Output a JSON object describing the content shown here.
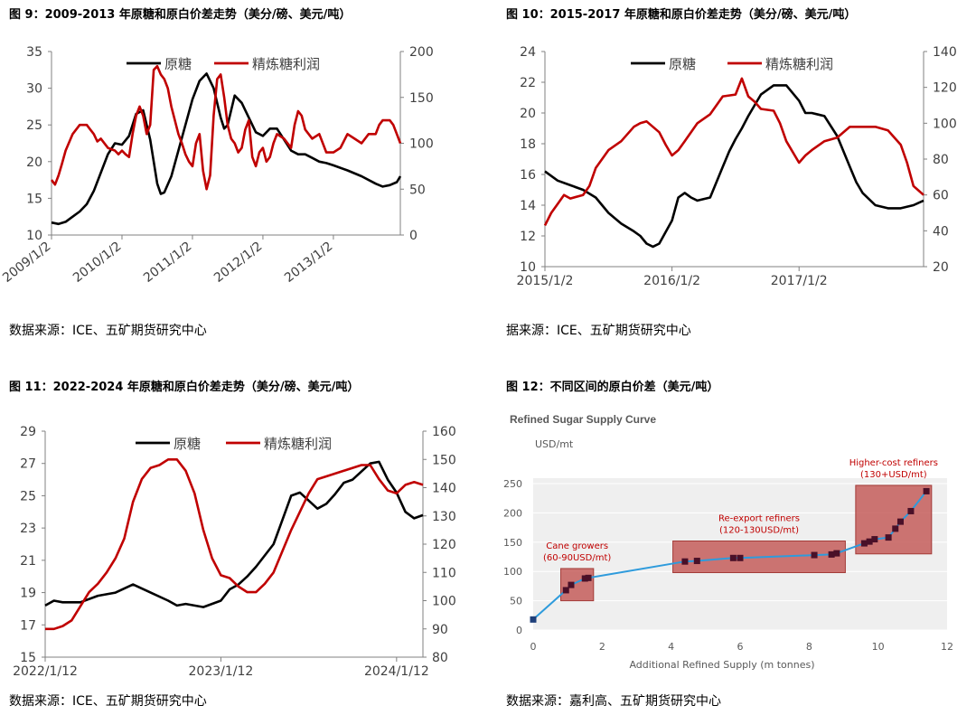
{
  "colors": {
    "raw": "#000000",
    "profit": "#c00000",
    "blue": "#2e9bdc",
    "box": "#c0504d"
  },
  "chart_data": [
    {
      "type": "line",
      "title": "图 9：2009-2013 年原糖和原白价差走势（美分/磅、美元/吨）",
      "source": "数据来源：ICE、五矿期货研究中心",
      "x_ticks": [
        "2009/1/2",
        "2010/1/2",
        "2011/1/2",
        "2012/1/2",
        "2013/1/2"
      ],
      "x_range": [
        2009.0,
        2013.95
      ],
      "y_left": {
        "range": [
          10,
          35
        ],
        "ticks": [
          "10",
          "15",
          "20",
          "25",
          "30",
          "35"
        ]
      },
      "y_right": {
        "range": [
          0,
          200
        ],
        "ticks": [
          "0",
          "50",
          "100",
          "150",
          "200"
        ]
      },
      "legend": [
        "原糖",
        "精炼糖利润"
      ],
      "series": [
        {
          "name": "原糖",
          "axis": "left",
          "x": [
            2009.0,
            2009.1,
            2009.2,
            2009.3,
            2009.4,
            2009.5,
            2009.6,
            2009.7,
            2009.8,
            2009.9,
            2010.0,
            2010.1,
            2010.2,
            2010.3,
            2010.4,
            2010.45,
            2010.5,
            2010.55,
            2010.6,
            2010.7,
            2010.8,
            2010.9,
            2011.0,
            2011.1,
            2011.2,
            2011.3,
            2011.4,
            2011.45,
            2011.5,
            2011.55,
            2011.6,
            2011.7,
            2011.8,
            2011.9,
            2012.0,
            2012.1,
            2012.2,
            2012.3,
            2012.4,
            2012.5,
            2012.6,
            2012.7,
            2012.8,
            2012.9,
            2013.0,
            2013.2,
            2013.4,
            2013.6,
            2013.7,
            2013.8,
            2013.9,
            2013.95
          ],
          "y": [
            11.7,
            11.5,
            11.8,
            12.5,
            13.2,
            14.2,
            16.0,
            18.5,
            21.0,
            22.5,
            22.3,
            23.5,
            26.5,
            27.0,
            23.0,
            20.0,
            17.0,
            15.6,
            15.8,
            18.0,
            21.5,
            25.0,
            28.5,
            31.0,
            32.0,
            30.0,
            26.0,
            24.5,
            25.0,
            27.0,
            29.0,
            28.0,
            26.0,
            24.0,
            23.5,
            24.5,
            24.5,
            23.0,
            21.5,
            21.0,
            21.0,
            20.5,
            20.0,
            19.8,
            19.5,
            18.8,
            18.0,
            17.0,
            16.6,
            16.8,
            17.2,
            18.0
          ]
        },
        {
          "name": "精炼糖利润",
          "axis": "right",
          "x": [
            2009.0,
            2009.05,
            2009.1,
            2009.15,
            2009.2,
            2009.3,
            2009.4,
            2009.5,
            2009.55,
            2009.6,
            2009.65,
            2009.7,
            2009.8,
            2009.9,
            2009.95,
            2010.0,
            2010.05,
            2010.1,
            2010.15,
            2010.2,
            2010.25,
            2010.3,
            2010.35,
            2010.4,
            2010.45,
            2010.5,
            2010.55,
            2010.6,
            2010.65,
            2010.7,
            2010.75,
            2010.8,
            2010.85,
            2010.9,
            2010.95,
            2011.0,
            2011.05,
            2011.1,
            2011.15,
            2011.2,
            2011.25,
            2011.3,
            2011.35,
            2011.4,
            2011.45,
            2011.5,
            2011.55,
            2011.6,
            2011.65,
            2011.7,
            2011.75,
            2011.8,
            2011.85,
            2011.9,
            2011.95,
            2012.0,
            2012.05,
            2012.1,
            2012.15,
            2012.2,
            2012.3,
            2012.4,
            2012.45,
            2012.5,
            2012.55,
            2012.6,
            2012.7,
            2012.8,
            2012.9,
            2013.0,
            2013.1,
            2013.2,
            2013.3,
            2013.4,
            2013.5,
            2013.6,
            2013.65,
            2013.7,
            2013.8,
            2013.85,
            2013.9,
            2013.95
          ],
          "y": [
            60,
            55,
            65,
            78,
            92,
            110,
            120,
            120,
            115,
            110,
            102,
            105,
            95,
            92,
            88,
            92,
            88,
            85,
            110,
            130,
            140,
            130,
            110,
            120,
            180,
            184,
            175,
            170,
            160,
            140,
            125,
            110,
            100,
            88,
            80,
            75,
            100,
            110,
            70,
            50,
            65,
            130,
            170,
            175,
            150,
            120,
            105,
            100,
            90,
            95,
            115,
            125,
            85,
            75,
            90,
            95,
            80,
            85,
            100,
            110,
            105,
            95,
            120,
            135,
            130,
            115,
            105,
            110,
            90,
            90,
            95,
            110,
            105,
            100,
            110,
            110,
            120,
            125,
            125,
            120,
            110,
            100
          ]
        }
      ]
    },
    {
      "type": "line",
      "title": "图 10：2015-2017 年原糖和原白价差走势（美分/磅、美元/吨）",
      "source": "据来源：ICE、五矿期货研究中心",
      "x_ticks": [
        "2015/1/2",
        "2016/1/2",
        "2017/1/2"
      ],
      "x_range": [
        2015.0,
        2017.98
      ],
      "y_left": {
        "range": [
          10,
          24
        ],
        "ticks": [
          "10",
          "12",
          "14",
          "16",
          "18",
          "20",
          "22",
          "24"
        ]
      },
      "y_right": {
        "range": [
          20,
          140
        ],
        "ticks": [
          "20",
          "40",
          "60",
          "80",
          "100",
          "120",
          "140"
        ]
      },
      "legend": [
        "原糖",
        "精炼糖利润"
      ],
      "series": [
        {
          "name": "原糖",
          "axis": "left",
          "x": [
            2015.0,
            2015.1,
            2015.2,
            2015.3,
            2015.4,
            2015.5,
            2015.6,
            2015.7,
            2015.75,
            2015.8,
            2015.85,
            2015.9,
            2016.0,
            2016.05,
            2016.1,
            2016.15,
            2016.2,
            2016.3,
            2016.35,
            2016.4,
            2016.45,
            2016.5,
            2016.55,
            2016.6,
            2016.65,
            2016.7,
            2016.8,
            2016.9,
            2017.0,
            2017.05,
            2017.1,
            2017.15,
            2017.2,
            2017.3,
            2017.35,
            2017.4,
            2017.45,
            2017.5,
            2017.6,
            2017.7,
            2017.8,
            2017.9,
            2017.98
          ],
          "y": [
            16.2,
            15.6,
            15.3,
            15.0,
            14.5,
            13.5,
            12.8,
            12.3,
            12.0,
            11.5,
            11.3,
            11.5,
            13.0,
            14.5,
            14.8,
            14.5,
            14.3,
            14.5,
            15.5,
            16.5,
            17.5,
            18.3,
            19.0,
            19.8,
            20.5,
            21.2,
            21.8,
            21.8,
            20.8,
            20.0,
            20.0,
            19.9,
            19.8,
            18.5,
            17.5,
            16.5,
            15.5,
            14.8,
            14.0,
            13.8,
            13.8,
            14.0,
            14.3
          ]
        },
        {
          "name": "精炼糖利润",
          "axis": "right",
          "x": [
            2015.0,
            2015.05,
            2015.1,
            2015.15,
            2015.2,
            2015.3,
            2015.35,
            2015.4,
            2015.5,
            2015.6,
            2015.7,
            2015.75,
            2015.8,
            2015.9,
            2015.95,
            2016.0,
            2016.05,
            2016.1,
            2016.2,
            2016.3,
            2016.4,
            2016.5,
            2016.55,
            2016.6,
            2016.65,
            2016.7,
            2016.8,
            2016.85,
            2016.9,
            2017.0,
            2017.05,
            2017.1,
            2017.2,
            2017.3,
            2017.4,
            2017.5,
            2017.6,
            2017.7,
            2017.8,
            2017.85,
            2017.9,
            2017.98
          ],
          "y": [
            43,
            50,
            55,
            60,
            58,
            60,
            65,
            75,
            85,
            90,
            98,
            100,
            101,
            95,
            88,
            82,
            85,
            90,
            100,
            105,
            115,
            116,
            125,
            115,
            112,
            108,
            107,
            100,
            90,
            78,
            82,
            85,
            90,
            92,
            98,
            98,
            98,
            96,
            88,
            78,
            65,
            60
          ]
        }
      ]
    },
    {
      "type": "line",
      "title": "图 11：2022-2024 年原糖和原白价差走势（美分/磅、美元/吨）",
      "source": "数据来源：ICE、五矿期货研究中心",
      "x_ticks": [
        "2022/1/12",
        "2023/1/12",
        "2024/1/12"
      ],
      "x_range": [
        2022.0,
        2024.15
      ],
      "y_left": {
        "range": [
          15,
          29
        ],
        "ticks": [
          "15",
          "17",
          "19",
          "21",
          "23",
          "25",
          "27",
          "29"
        ]
      },
      "y_right": {
        "range": [
          80,
          160
        ],
        "ticks": [
          "80",
          "90",
          "100",
          "110",
          "120",
          "130",
          "140",
          "150",
          "160"
        ]
      },
      "legend": [
        "原糖",
        "精炼糖利润"
      ],
      "series": [
        {
          "name": "原糖",
          "axis": "left",
          "x": [
            2022.0,
            2022.05,
            2022.1,
            2022.2,
            2022.3,
            2022.4,
            2022.5,
            2022.6,
            2022.7,
            2022.75,
            2022.8,
            2022.9,
            2023.0,
            2023.05,
            2023.1,
            2023.15,
            2023.2,
            2023.3,
            2023.35,
            2023.4,
            2023.45,
            2023.5,
            2023.55,
            2023.6,
            2023.65,
            2023.7,
            2023.75,
            2023.8,
            2023.85,
            2023.9,
            2023.95,
            2024.0,
            2024.05,
            2024.1,
            2024.15
          ],
          "y": [
            18.2,
            18.5,
            18.4,
            18.4,
            18.8,
            19.0,
            19.5,
            19.0,
            18.5,
            18.2,
            18.3,
            18.1,
            18.5,
            19.2,
            19.5,
            20.0,
            20.6,
            22.0,
            23.5,
            25.0,
            25.2,
            24.7,
            24.2,
            24.5,
            25.1,
            25.8,
            26.0,
            26.5,
            27.0,
            27.1,
            26.0,
            25.2,
            24.0,
            23.6,
            23.8
          ]
        },
        {
          "name": "精炼糖利润",
          "axis": "right",
          "x": [
            2022.0,
            2022.05,
            2022.1,
            2022.15,
            2022.2,
            2022.25,
            2022.3,
            2022.35,
            2022.4,
            2022.45,
            2022.5,
            2022.55,
            2022.6,
            2022.65,
            2022.7,
            2022.75,
            2022.8,
            2022.85,
            2022.9,
            2022.95,
            2023.0,
            2023.05,
            2023.1,
            2023.15,
            2023.2,
            2023.25,
            2023.3,
            2023.4,
            2023.5,
            2023.55,
            2023.6,
            2023.65,
            2023.7,
            2023.8,
            2023.85,
            2023.9,
            2023.95,
            2024.0,
            2024.05,
            2024.1,
            2024.15
          ],
          "y": [
            90,
            90,
            91,
            93,
            98,
            103,
            106,
            110,
            115,
            122,
            135,
            143,
            147,
            148,
            150,
            150,
            146,
            138,
            125,
            115,
            109,
            108,
            105,
            103,
            103,
            106,
            110,
            125,
            138,
            143,
            144,
            145,
            146,
            148,
            148,
            143,
            139,
            138,
            141,
            142,
            141
          ]
        }
      ]
    },
    {
      "type": "scatter",
      "title": "图 12：不同区间的原白价差（美元/吨）",
      "source": "数据来源：嘉利高、五矿期货研究中心",
      "inner_title": "Refined Sugar Supply Curve",
      "unit_label": "USD/mt",
      "xlabel": "Additional Refined Supply (m tonnes)",
      "x_ticks": [
        "0",
        "2",
        "4",
        "6",
        "8",
        "10",
        "12"
      ],
      "x_range": [
        0,
        12
      ],
      "y_ticks": [
        "0",
        "50",
        "100",
        "150",
        "200",
        "250"
      ],
      "y_range": [
        0,
        250
      ],
      "points": [
        {
          "x": 0,
          "y": 18
        },
        {
          "x": 0.95,
          "y": 68
        },
        {
          "x": 1.1,
          "y": 77
        },
        {
          "x": 1.5,
          "y": 88
        },
        {
          "x": 1.6,
          "y": 89
        },
        {
          "x": 4.4,
          "y": 117
        },
        {
          "x": 4.75,
          "y": 118
        },
        {
          "x": 5.8,
          "y": 123
        },
        {
          "x": 6.0,
          "y": 123
        },
        {
          "x": 8.15,
          "y": 128
        },
        {
          "x": 8.65,
          "y": 129
        },
        {
          "x": 8.8,
          "y": 131
        },
        {
          "x": 9.6,
          "y": 148
        },
        {
          "x": 9.75,
          "y": 151
        },
        {
          "x": 9.9,
          "y": 155
        },
        {
          "x": 10.3,
          "y": 158
        },
        {
          "x": 10.5,
          "y": 173
        },
        {
          "x": 10.65,
          "y": 185
        },
        {
          "x": 10.95,
          "y": 203
        },
        {
          "x": 11.4,
          "y": 237
        }
      ],
      "regions": [
        {
          "label": "Cane growers",
          "sub": "(60-90USD/mt)",
          "x0": 0.8,
          "x1": 1.75,
          "y0": 50,
          "y1": 105
        },
        {
          "label": "Re-export refiners",
          "sub": "(120-130USD/mt)",
          "x0": 4.05,
          "x1": 9.05,
          "y0": 98,
          "y1": 152
        },
        {
          "label": "Higher-cost refiners",
          "sub": "(130+USD/mt)",
          "x0": 9.35,
          "x1": 11.55,
          "y0": 130,
          "y1": 247
        }
      ]
    }
  ]
}
